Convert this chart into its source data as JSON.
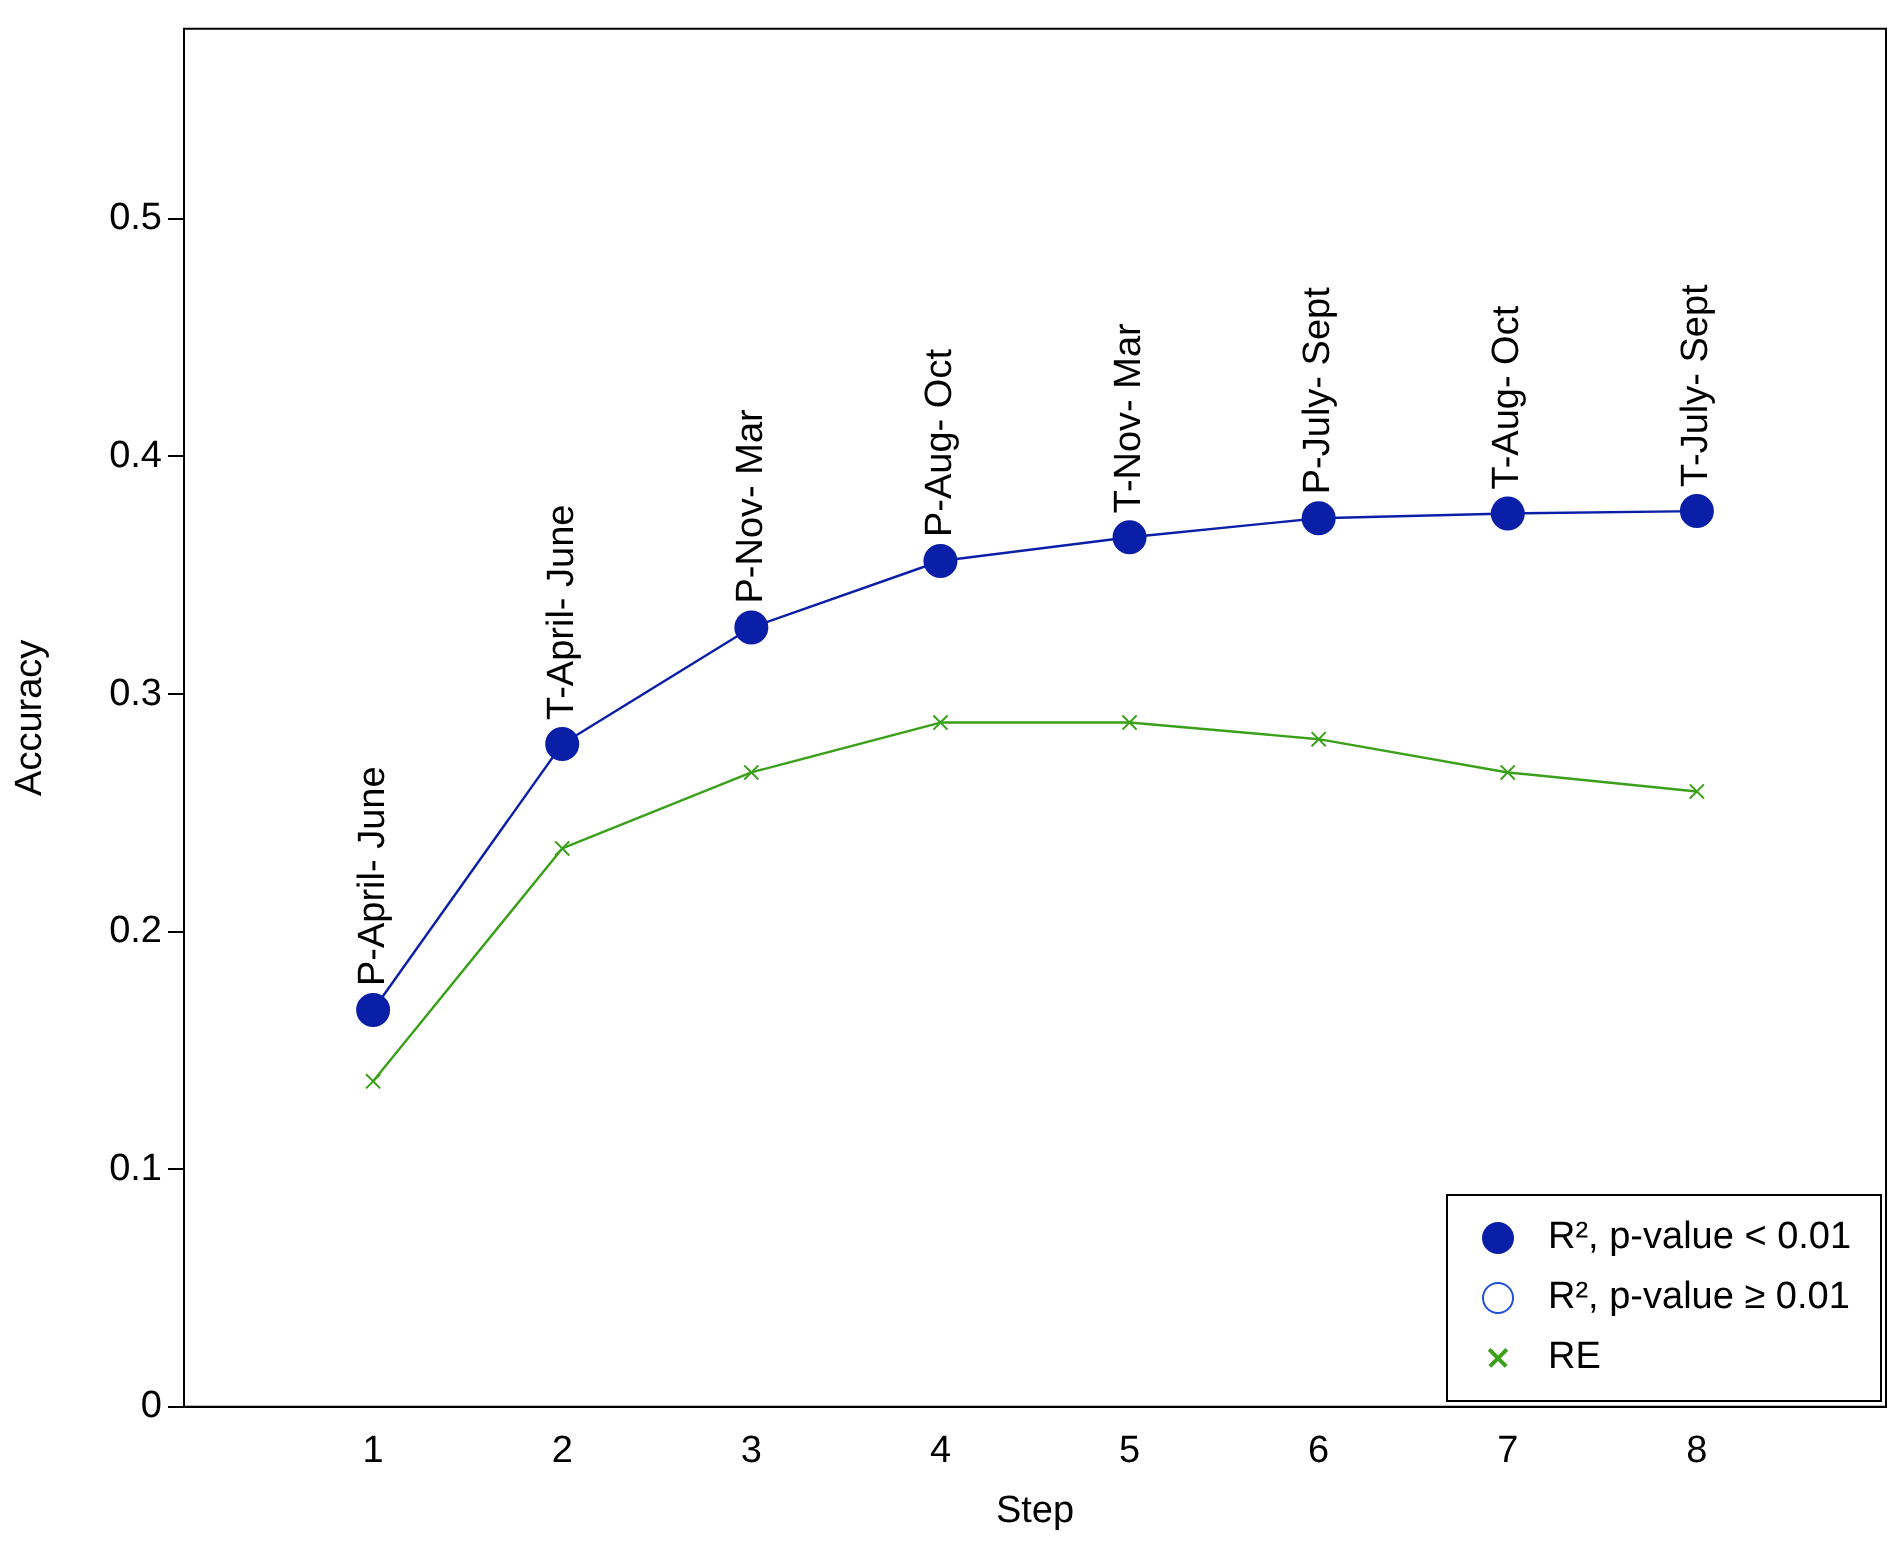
{
  "chart_data": {
    "type": "line",
    "xlabel": "Step",
    "ylabel": "Accuracy",
    "x": [
      1,
      2,
      3,
      4,
      5,
      6,
      7,
      8
    ],
    "xlim": [
      0,
      9
    ],
    "xticks": [
      1,
      2,
      3,
      4,
      5,
      6,
      7,
      8
    ],
    "ylim": [
      0,
      0.58
    ],
    "yticks": [
      0,
      0.1,
      0.2,
      0.3,
      0.4,
      0.5
    ],
    "grid": false,
    "legend": "bottom right",
    "series": [
      {
        "name": "R², p-value <  0.01",
        "color": "#0a1fa8",
        "marker": "circle",
        "values": [
          0.167,
          0.279,
          0.328,
          0.356,
          0.366,
          0.374,
          0.376,
          0.377
        ]
      },
      {
        "name": "R², p-value ≥  0.01",
        "color": "#1f4fd8",
        "marker": "circle",
        "values": [
          null,
          null,
          null,
          null,
          null,
          null,
          null,
          null
        ]
      },
      {
        "name": "RE",
        "color": "#3aa01a",
        "marker": "cross",
        "values": [
          0.137,
          0.235,
          0.267,
          0.288,
          0.288,
          0.281,
          0.267,
          0.259
        ]
      }
    ],
    "annotations": [
      {
        "text": "P-April- June",
        "x": 1,
        "y": 0.167
      },
      {
        "text": "T-April- June",
        "x": 2,
        "y": 0.279
      },
      {
        "text": "P-Nov- Mar",
        "x": 3,
        "y": 0.328
      },
      {
        "text": "P-Aug- Oct",
        "x": 4,
        "y": 0.356
      },
      {
        "text": "T-Nov- Mar",
        "x": 5,
        "y": 0.366
      },
      {
        "text": "P-July- Sept",
        "x": 6,
        "y": 0.374
      },
      {
        "text": "T-Aug- Oct",
        "x": 7,
        "y": 0.376
      },
      {
        "text": "T-July- Sept",
        "x": 8,
        "y": 0.377
      }
    ]
  }
}
